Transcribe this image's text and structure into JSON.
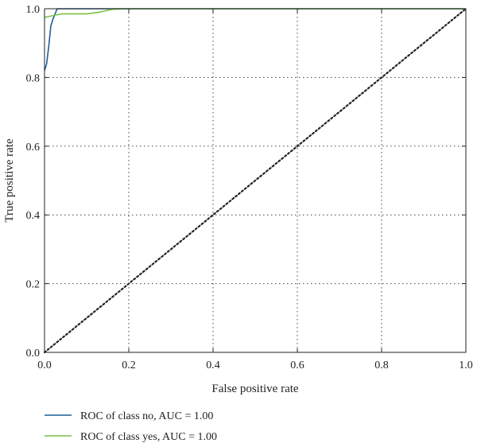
{
  "chart_data": {
    "type": "line",
    "xlabel": "False positive rate",
    "ylabel": "True positive rate",
    "xlim": [
      0.0,
      1.0
    ],
    "ylim": [
      0.0,
      1.0
    ],
    "x_ticks": [
      "0.0",
      "0.2",
      "0.4",
      "0.6",
      "0.8",
      "1.0"
    ],
    "y_ticks": [
      "0.0",
      "0.2",
      "0.4",
      "0.6",
      "0.8",
      "1.0"
    ],
    "grid": true,
    "legend_position": "below",
    "series": [
      {
        "name": "ROC of class no, AUC = 1.00",
        "color": "#1f5f99",
        "points": [
          [
            0.0,
            0.82
          ],
          [
            0.005,
            0.84
          ],
          [
            0.01,
            0.89
          ],
          [
            0.015,
            0.95
          ],
          [
            0.02,
            0.97
          ],
          [
            0.03,
            1.0
          ],
          [
            0.3,
            1.0
          ],
          [
            1.0,
            1.0
          ]
        ]
      },
      {
        "name": "ROC of class yes, AUC = 1.00",
        "color": "#7ac143",
        "points": [
          [
            0.0,
            0.975
          ],
          [
            0.02,
            0.98
          ],
          [
            0.04,
            0.985
          ],
          [
            0.1,
            0.985
          ],
          [
            0.13,
            0.99
          ],
          [
            0.16,
            0.998
          ],
          [
            0.19,
            1.0
          ],
          [
            1.0,
            1.0
          ]
        ]
      },
      {
        "name": "",
        "color": "#222222",
        "style": "dotted",
        "points": [
          [
            0.0,
            0.0
          ],
          [
            1.0,
            1.0
          ]
        ]
      }
    ]
  }
}
